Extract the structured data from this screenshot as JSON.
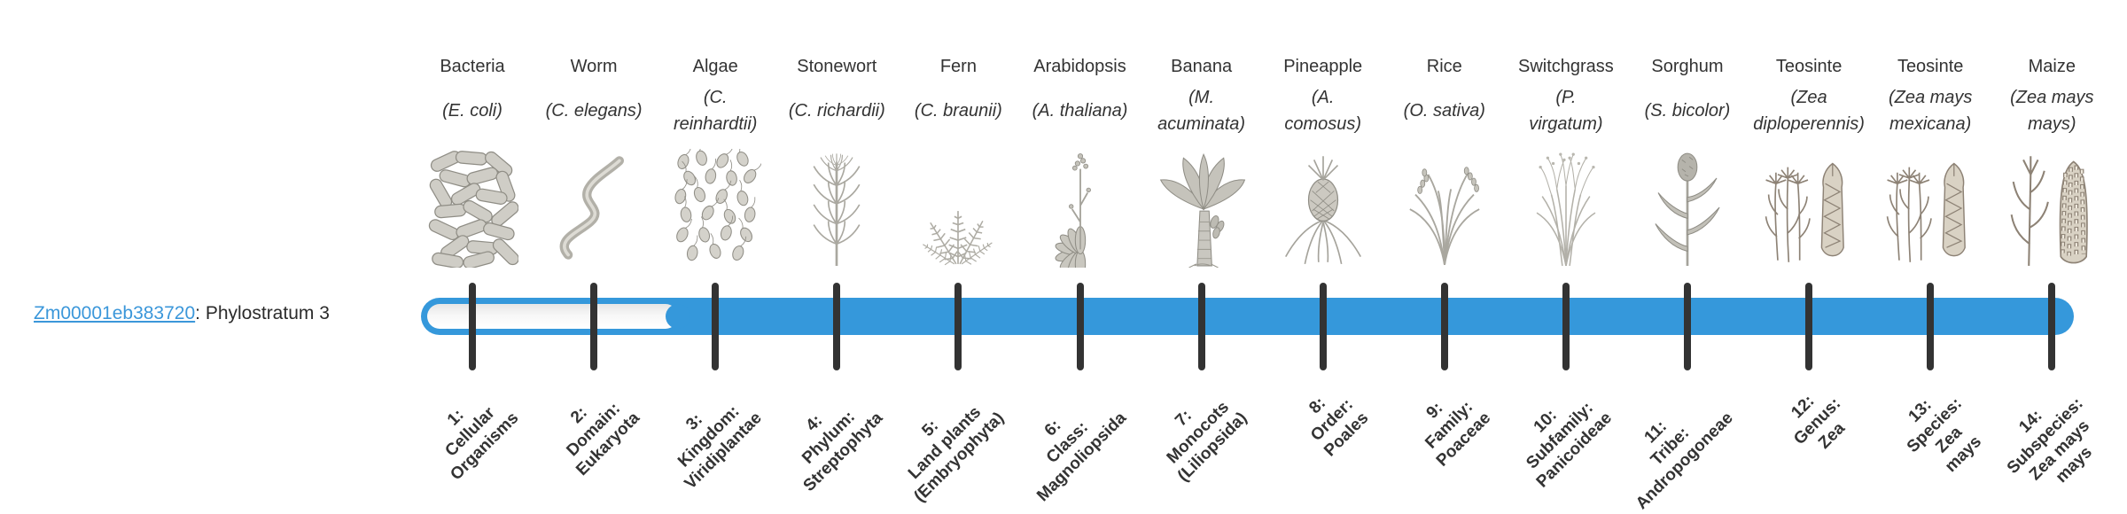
{
  "gene_info": {
    "gene_id": "Zm00001eb383720",
    "suffix": ": Phylostratum 3"
  },
  "timeline": {
    "bar_color": "#3598DB",
    "tick_color": "#333333",
    "unfilled_track_color": "#F2F2F2",
    "filled_from_stratum": 3,
    "total_strata": 14
  },
  "strata": [
    {
      "number": 1,
      "organism": "Bacteria",
      "scientific": "(E. coli)",
      "icon": "bacteria-icon",
      "stratum_label": "1:\nCellular\nOrganisms"
    },
    {
      "number": 2,
      "organism": "Worm",
      "scientific": "(C. elegans)",
      "icon": "worm-icon",
      "stratum_label": "2:\nDomain:\nEukaryota"
    },
    {
      "number": 3,
      "organism": "Algae",
      "scientific": "(C.\nreinhardtii)",
      "icon": "algae-icon",
      "stratum_label": "3:\nKingdom:\nViridiplantae"
    },
    {
      "number": 4,
      "organism": "Stonewort",
      "scientific": "(C. richardii)",
      "icon": "stonewort-icon",
      "stratum_label": "4:\nPhylum:\nStreptophyta"
    },
    {
      "number": 5,
      "organism": "Fern",
      "scientific": "(C. braunii)",
      "icon": "fern-icon",
      "stratum_label": "5:\nLand plants\n(Embryophyta)"
    },
    {
      "number": 6,
      "organism": "Arabidopsis",
      "scientific": "(A. thaliana)",
      "icon": "arabidopsis-icon",
      "stratum_label": "6:\nClass:\nMagnoliopsida"
    },
    {
      "number": 7,
      "organism": "Banana",
      "scientific": "(M.\nacuminata)",
      "icon": "banana-icon",
      "stratum_label": "7:\nMonocots\n(Liliopsida)"
    },
    {
      "number": 8,
      "organism": "Pineapple",
      "scientific": "(A.\ncomosus)",
      "icon": "pineapple-icon",
      "stratum_label": "8:\nOrder:\nPoales"
    },
    {
      "number": 9,
      "organism": "Rice",
      "scientific": "(O. sativa)",
      "icon": "rice-icon",
      "stratum_label": "9:\nFamily:\nPoaceae"
    },
    {
      "number": 10,
      "organism": "Switchgrass",
      "scientific": "(P.\nvirgatum)",
      "icon": "switchgrass-icon",
      "stratum_label": "10:\nSubfamily:\nPanicoideae"
    },
    {
      "number": 11,
      "organism": "Sorghum",
      "scientific": "(S. bicolor)",
      "icon": "sorghum-icon",
      "stratum_label": "11:\nTribe:\nAndropogoneae"
    },
    {
      "number": 12,
      "organism": "Teosinte",
      "scientific": "(Zea\ndiploperennis)",
      "icon": "teosinte-icon",
      "stratum_label": "12:\nGenus:\nZea"
    },
    {
      "number": 13,
      "organism": "Teosinte",
      "scientific": "(Zea mays\nmexicana)",
      "icon": "teosinte-icon",
      "stratum_label": "13:\nSpecies:\nZea\nmays"
    },
    {
      "number": 14,
      "organism": "Maize",
      "scientific": "(Zea mays\nmays)",
      "icon": "maize-icon",
      "stratum_label": "14:\nSubspecies:\nZea mays\nmays"
    }
  ]
}
